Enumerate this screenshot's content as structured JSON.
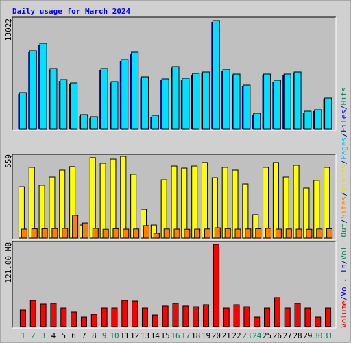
{
  "title": "Daily usage for March 2024",
  "separator": "/",
  "legend": [
    {
      "label": "Volume",
      "color": "#ff0000"
    },
    {
      "label": "Vol. In",
      "color": "#0000ff"
    },
    {
      "label": "Vol. Out",
      "color": "#00805c"
    },
    {
      "label": "Sites",
      "color": "#ff8000"
    },
    {
      "label": "Visits",
      "color": "#e0e000"
    },
    {
      "label": "Pages",
      "color": "#00c0ff"
    },
    {
      "label": "Files",
      "color": "#0000ff"
    },
    {
      "label": "Hits",
      "color": "#00805c"
    }
  ],
  "categories": [
    "1",
    "2",
    "3",
    "4",
    "5",
    "6",
    "7",
    "8",
    "9",
    "10",
    "11",
    "12",
    "13",
    "14",
    "15",
    "16",
    "17",
    "18",
    "19",
    "20",
    "21",
    "22",
    "23",
    "24",
    "25",
    "26",
    "27",
    "28",
    "29",
    "30",
    "31"
  ],
  "weekend": [
    false,
    true,
    true,
    false,
    false,
    false,
    false,
    false,
    true,
    true,
    false,
    false,
    false,
    false,
    false,
    true,
    true,
    false,
    false,
    false,
    false,
    false,
    true,
    true,
    false,
    false,
    false,
    false,
    false,
    true,
    true
  ],
  "chart_data": [
    {
      "type": "bar",
      "ylim": [
        0,
        13022
      ],
      "yticks": [
        13022
      ],
      "series": [
        {
          "name": "Pages",
          "color": "#00e0ff",
          "values": [
            4368,
            9396,
            10302,
            7253,
            5934,
            5522,
            1731,
            1484,
            7253,
            5687,
            8324,
            9231,
            6264,
            1648,
            6017,
            7500,
            6099,
            6676,
            6841,
            13022,
            7170,
            6593,
            5275,
            1896,
            6593,
            5852,
            6593,
            6841,
            2143,
            2308,
            3709
          ]
        }
      ]
    },
    {
      "type": "bar",
      "ylim": [
        0,
        559
      ],
      "yticks": [
        559
      ],
      "series": [
        {
          "name": "Visits",
          "color": "#ffff00",
          "values": [
            352,
            484,
            362,
            418,
            465,
            489,
            89,
            550,
            512,
            540,
            559,
            437,
            197,
            89,
            399,
            493,
            479,
            493,
            517,
            413,
            484,
            465,
            371,
            160,
            484,
            517,
            418,
            498,
            343,
            395,
            484
          ]
        },
        {
          "name": "Sites",
          "color": "#ff8000",
          "values": [
            61,
            63,
            64,
            65,
            66,
            155,
            103,
            66,
            60,
            64,
            61,
            62,
            85,
            33,
            62,
            61,
            60,
            61,
            62,
            70,
            64,
            61,
            62,
            64,
            66,
            61,
            62,
            61,
            60,
            62,
            64
          ]
        }
      ]
    },
    {
      "type": "bar",
      "ylim": [
        0,
        121
      ],
      "yticks": [
        {
          "value": 121,
          "label": "121.00 MB"
        }
      ],
      "series": [
        {
          "name": "Volume",
          "color": "#ff0000",
          "values": [
            24.2,
            38.3,
            33.3,
            34.3,
            27.2,
            21.2,
            14.1,
            18.1,
            27.2,
            27.2,
            38.3,
            37.3,
            27.2,
            17.1,
            30.3,
            34.3,
            30.3,
            29.2,
            32.3,
            121,
            27.2,
            32.3,
            29.2,
            14.1,
            27.2,
            42.4,
            27.2,
            34.3,
            27.2,
            14.1,
            27.2
          ]
        }
      ]
    }
  ]
}
